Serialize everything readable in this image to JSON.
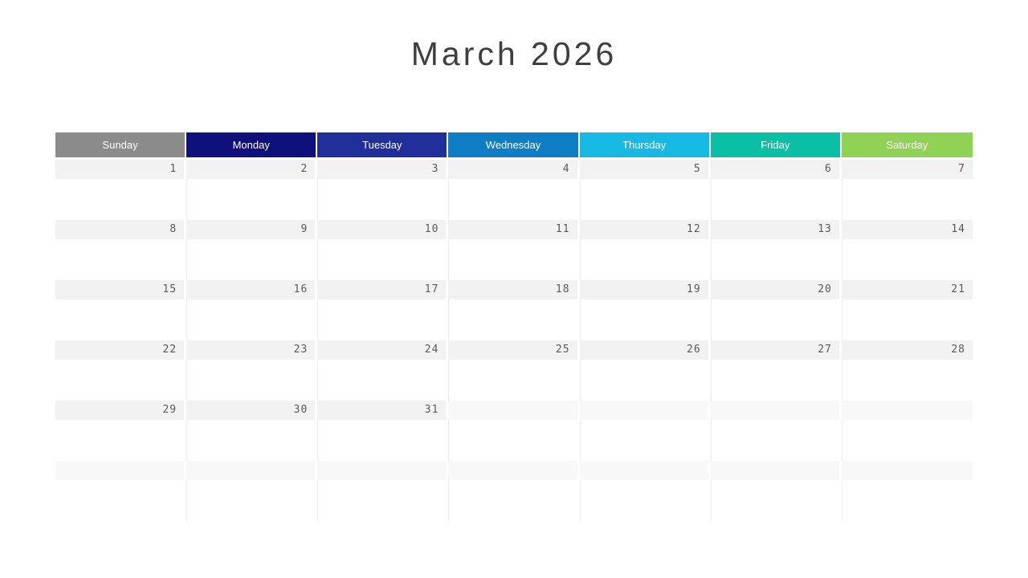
{
  "header": {
    "title": "March 2026"
  },
  "calendar": {
    "colors": {
      "title_text": "#3f3f3f",
      "header_text": "#ffffff",
      "day_number_text": "#595959",
      "strip_in_month": "#f2f2f2",
      "strip_out_month": "#f8f8f8",
      "grid_line": "#ededed",
      "background": "#ffffff"
    },
    "day_headers": [
      {
        "label": "Sunday",
        "color": "#8b8b8b"
      },
      {
        "label": "Monday",
        "color": "#10107d"
      },
      {
        "label": "Tuesday",
        "color": "#202f9c"
      },
      {
        "label": "Wednesday",
        "color": "#0f7dc4"
      },
      {
        "label": "Thursday",
        "color": "#16b9e2"
      },
      {
        "label": "Friday",
        "color": "#0bbfa6"
      },
      {
        "label": "Saturday",
        "color": "#90d255"
      }
    ],
    "weeks": [
      {
        "days": [
          {
            "number": "1",
            "in_month": true
          },
          {
            "number": "2",
            "in_month": true
          },
          {
            "number": "3",
            "in_month": true
          },
          {
            "number": "4",
            "in_month": true
          },
          {
            "number": "5",
            "in_month": true
          },
          {
            "number": "6",
            "in_month": true
          },
          {
            "number": "7",
            "in_month": true
          }
        ]
      },
      {
        "days": [
          {
            "number": "8",
            "in_month": true
          },
          {
            "number": "9",
            "in_month": true
          },
          {
            "number": "10",
            "in_month": true
          },
          {
            "number": "11",
            "in_month": true
          },
          {
            "number": "12",
            "in_month": true
          },
          {
            "number": "13",
            "in_month": true
          },
          {
            "number": "14",
            "in_month": true
          }
        ]
      },
      {
        "days": [
          {
            "number": "15",
            "in_month": true
          },
          {
            "number": "16",
            "in_month": true
          },
          {
            "number": "17",
            "in_month": true
          },
          {
            "number": "18",
            "in_month": true
          },
          {
            "number": "19",
            "in_month": true
          },
          {
            "number": "20",
            "in_month": true
          },
          {
            "number": "21",
            "in_month": true
          }
        ]
      },
      {
        "days": [
          {
            "number": "22",
            "in_month": true
          },
          {
            "number": "23",
            "in_month": true
          },
          {
            "number": "24",
            "in_month": true
          },
          {
            "number": "25",
            "in_month": true
          },
          {
            "number": "26",
            "in_month": true
          },
          {
            "number": "27",
            "in_month": true
          },
          {
            "number": "28",
            "in_month": true
          }
        ]
      },
      {
        "days": [
          {
            "number": "29",
            "in_month": true
          },
          {
            "number": "30",
            "in_month": true
          },
          {
            "number": "31",
            "in_month": true
          },
          {
            "number": "",
            "in_month": false
          },
          {
            "number": "",
            "in_month": false
          },
          {
            "number": "",
            "in_month": false
          },
          {
            "number": "",
            "in_month": false
          }
        ]
      },
      {
        "days": [
          {
            "number": "",
            "in_month": false
          },
          {
            "number": "",
            "in_month": false
          },
          {
            "number": "",
            "in_month": false
          },
          {
            "number": "",
            "in_month": false
          },
          {
            "number": "",
            "in_month": false
          },
          {
            "number": "",
            "in_month": false
          },
          {
            "number": "",
            "in_month": false
          }
        ]
      }
    ]
  }
}
